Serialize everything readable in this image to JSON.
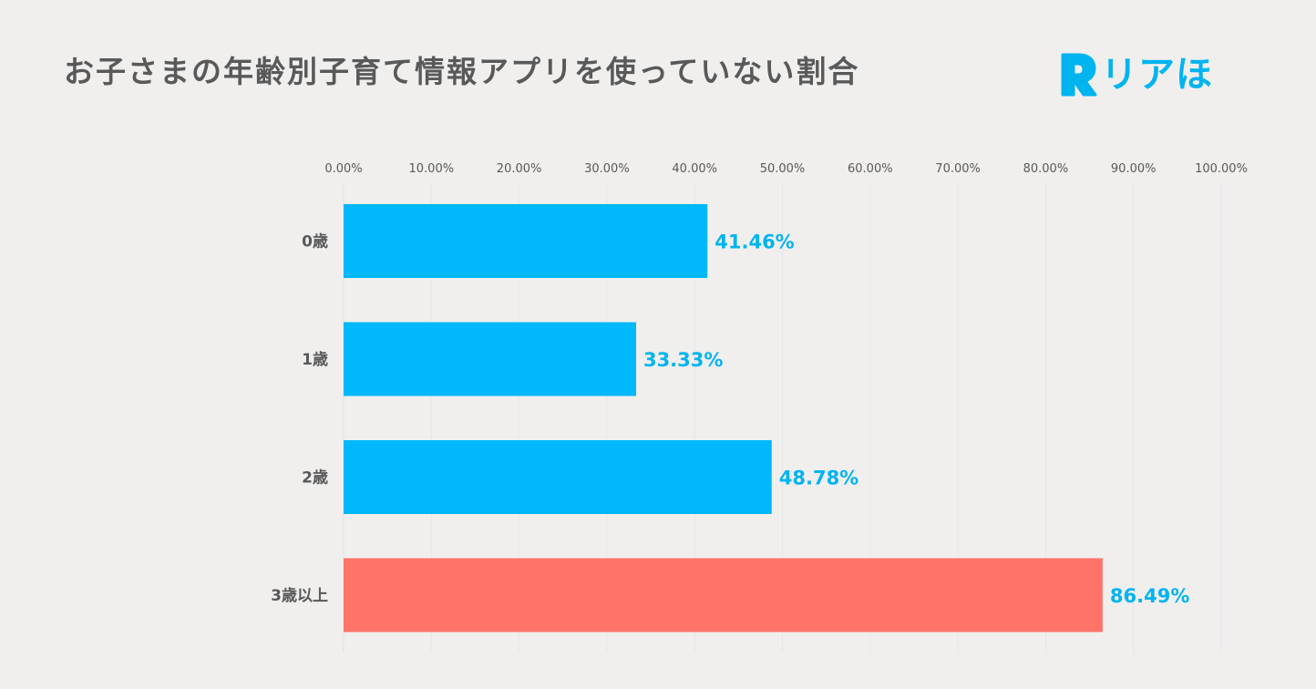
{
  "title": "お子さまの年齢別子育て情報アプリを使っていない割合",
  "logo": {
    "mark": "R",
    "text": "リアほ",
    "color": "#00b4f0"
  },
  "chart_data": {
    "type": "bar",
    "orientation": "horizontal",
    "title": "お子さまの年齢別子育て情報アプリを使っていない割合",
    "categories": [
      "0歳",
      "1歳",
      "2歳",
      "3歳以上"
    ],
    "values": [
      41.46,
      33.33,
      48.78,
      86.49
    ],
    "value_labels": [
      "41.46%",
      "33.33%",
      "48.78%",
      "86.49%"
    ],
    "bar_colors": [
      "#00b8fa",
      "#00b8fa",
      "#00b8fa",
      "#ff7369"
    ],
    "value_label_color": "#00b4f0",
    "xlim": [
      0,
      100
    ],
    "xticks": [
      0,
      10,
      20,
      30,
      40,
      50,
      60,
      70,
      80,
      90,
      100
    ],
    "xtick_labels": [
      "0.00%",
      "10.00%",
      "20.00%",
      "30.00%",
      "40.00%",
      "50.00%",
      "60.00%",
      "70.00%",
      "80.00%",
      "90.00%",
      "100.00%"
    ],
    "xlabel": "",
    "ylabel": "",
    "grid": true,
    "axis_position": "top"
  }
}
